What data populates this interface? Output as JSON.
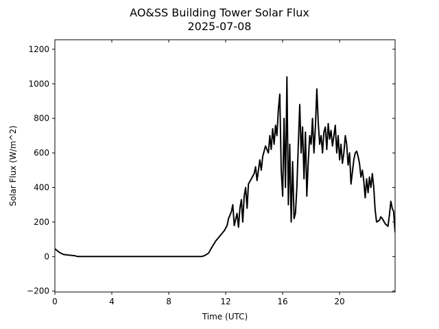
{
  "chart_data": {
    "type": "line",
    "title": "AO&SS Building Tower Solar Flux",
    "subtitle": "2025-07-08",
    "xlabel": "Time (UTC)",
    "ylabel": "Solar Flux (W/m^2)",
    "xlim": [
      0,
      23.9
    ],
    "ylim": [
      -205,
      1255
    ],
    "xticks": [
      0,
      4,
      8,
      12,
      16,
      20
    ],
    "yticks": [
      -200,
      0,
      200,
      400,
      600,
      800,
      1000,
      1200
    ],
    "grid": false,
    "line_color": "#000000",
    "series": [
      {
        "name": "Solar Flux",
        "x": [
          0,
          0.3,
          0.6,
          1.0,
          1.4,
          1.6,
          3,
          6,
          8,
          10.3,
          10.5,
          10.8,
          11.0,
          11.3,
          11.6,
          11.9,
          12.1,
          12.2,
          12.4,
          12.5,
          12.6,
          12.8,
          12.9,
          13.0,
          13.1,
          13.2,
          13.3,
          13.4,
          13.5,
          13.6,
          13.8,
          14.0,
          14.1,
          14.2,
          14.4,
          14.5,
          14.6,
          14.8,
          15.0,
          15.1,
          15.2,
          15.3,
          15.4,
          15.5,
          15.6,
          15.7,
          15.8,
          15.9,
          16.0,
          16.1,
          16.2,
          16.3,
          16.4,
          16.5,
          16.6,
          16.7,
          16.8,
          16.9,
          17.0,
          17.1,
          17.2,
          17.3,
          17.4,
          17.5,
          17.6,
          17.7,
          17.8,
          17.9,
          18.0,
          18.1,
          18.2,
          18.3,
          18.4,
          18.5,
          18.6,
          18.7,
          18.8,
          18.9,
          19.0,
          19.1,
          19.2,
          19.3,
          19.4,
          19.5,
          19.6,
          19.7,
          19.8,
          19.9,
          20.0,
          20.1,
          20.2,
          20.3,
          20.4,
          20.5,
          20.6,
          20.7,
          20.8,
          21.0,
          21.1,
          21.2,
          21.3,
          21.4,
          21.5,
          21.6,
          21.7,
          21.8,
          21.9,
          22.0,
          22.1,
          22.2,
          22.3,
          22.4,
          22.5,
          22.6,
          22.8,
          22.9,
          23.0,
          23.2,
          23.4,
          23.5,
          23.6,
          23.7,
          23.8,
          23.9
        ],
        "y": [
          45,
          25,
          12,
          8,
          5,
          0,
          0,
          0,
          0,
          0,
          5,
          20,
          50,
          90,
          120,
          150,
          180,
          220,
          260,
          300,
          180,
          250,
          170,
          280,
          330,
          200,
          350,
          400,
          280,
          420,
          450,
          480,
          520,
          440,
          560,
          500,
          580,
          640,
          600,
          700,
          620,
          740,
          650,
          760,
          700,
          850,
          940,
          500,
          350,
          800,
          400,
          1040,
          300,
          650,
          200,
          550,
          220,
          250,
          400,
          650,
          880,
          600,
          750,
          450,
          720,
          350,
          550,
          700,
          650,
          800,
          600,
          750,
          970,
          780,
          650,
          700,
          600,
          720,
          750,
          620,
          770,
          680,
          730,
          640,
          700,
          760,
          600,
          700,
          560,
          650,
          540,
          600,
          700,
          650,
          530,
          600,
          420,
          560,
          600,
          610,
          580,
          540,
          460,
          500,
          440,
          340,
          450,
          370,
          460,
          400,
          480,
          400,
          270,
          200,
          210,
          230,
          220,
          190,
          175,
          240,
          320,
          280,
          260,
          140
        ]
      }
    ]
  }
}
